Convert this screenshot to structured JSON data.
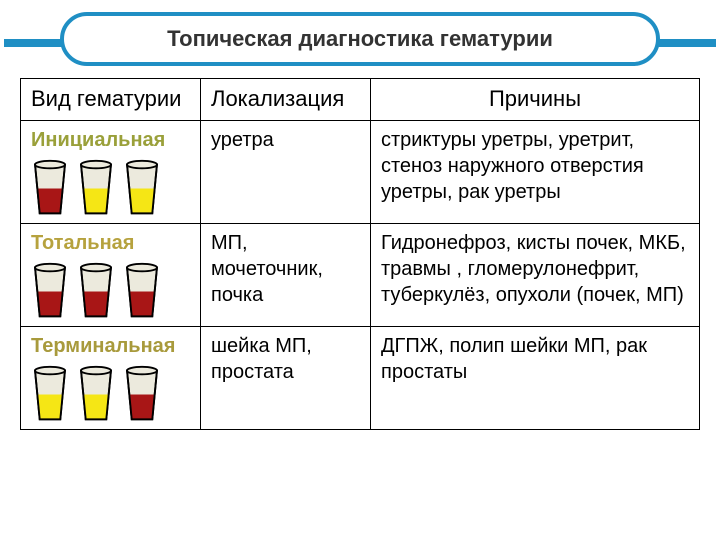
{
  "title": "Топическая диагностика гематурии",
  "colors": {
    "border_banner": "#1f8fc4",
    "cup_outline": "#000000",
    "cup_wall": "#eceadd",
    "red": "#a81616",
    "yellow": "#f5e615",
    "table_border": "#000000",
    "text": "#000000",
    "type_initial": "#9aa03a",
    "type_total": "#b6a23e",
    "type_terminal": "#a89a3c"
  },
  "table": {
    "headers": [
      "Вид гематурии",
      "Локализация",
      "Причины"
    ],
    "rows": [
      {
        "type": "Инициальная",
        "type_color": "#9aa03a",
        "localization": "уретра",
        "causes": "стриктуры уретры, уретрит, стеноз наружного отверстия уретры, рак уретры",
        "cups": [
          {
            "fill": "#a81616",
            "level": 0.55
          },
          {
            "fill": "#f5e615",
            "level": 0.55
          },
          {
            "fill": "#f5e615",
            "level": 0.55
          }
        ]
      },
      {
        "type": "Тотальная",
        "type_color": "#b6a23e",
        "localization": "МП, мочеточник, почка",
        "causes": "Гидронефроз, кисты почек, МКБ, травмы , гломерулонефрит, туберкулёз, опухоли (почек, МП)",
        "cups": [
          {
            "fill": "#a81616",
            "level": 0.55
          },
          {
            "fill": "#a81616",
            "level": 0.55
          },
          {
            "fill": "#a81616",
            "level": 0.55
          }
        ]
      },
      {
        "type": "Терминальная",
        "type_color": "#a89a3c",
        "localization": "шейка МП, простата",
        "causes": "ДГПЖ, полип шейки МП, рак простаты",
        "cups": [
          {
            "fill": "#f5e615",
            "level": 0.55
          },
          {
            "fill": "#f5e615",
            "level": 0.55
          },
          {
            "fill": "#a81616",
            "level": 0.55
          }
        ]
      }
    ]
  }
}
